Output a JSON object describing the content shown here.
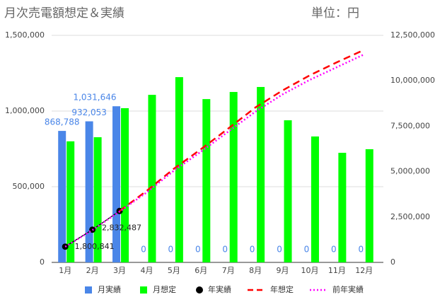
{
  "chart_data": {
    "type": "bar",
    "title": "月次売電額想定＆実績",
    "subtitle": "単位：円",
    "categories": [
      "1月",
      "2月",
      "3月",
      "4月",
      "5月",
      "6月",
      "7月",
      "8月",
      "9月",
      "10月",
      "11月",
      "12月"
    ],
    "ylim": [
      0,
      1500000
    ],
    "yticks": [
      0,
      {
        "value": 500000,
        "label": "500,000"
      },
      {
        "value": 1000000,
        "label": "1,000,000"
      },
      {
        "value": 1500000,
        "label": "1,500,000"
      }
    ],
    "y2lim": [
      0,
      12500000
    ],
    "y2ticks": [
      0,
      {
        "value": 2500000,
        "label": "2,500,000"
      },
      {
        "value": 5000000,
        "label": "5,000,000"
      },
      {
        "value": 7500000,
        "label": "7,500,000"
      },
      {
        "value": 10000000,
        "label": "10,000,000"
      },
      {
        "value": 12500000,
        "label": "12,500,000"
      }
    ],
    "grid": true,
    "legend": "bottom",
    "series": [
      {
        "name": "月実績",
        "type": "bar",
        "color": "#4a86e8",
        "values": [
          868788,
          932053,
          1031646,
          0,
          0,
          0,
          0,
          0,
          0,
          0,
          0,
          0
        ],
        "value_labels": [
          "868,788",
          "932,053",
          "1,031,646",
          "0",
          "0",
          "0",
          "0",
          "0",
          "0",
          "0",
          "0",
          "0"
        ]
      },
      {
        "name": "月想定",
        "type": "bar",
        "color": "#00ff00",
        "values": [
          800000,
          827000,
          1019000,
          1107000,
          1224000,
          1079000,
          1126000,
          1159000,
          939000,
          832000,
          724000,
          748000
        ]
      },
      {
        "name": "年実績",
        "type": "line",
        "axis": "y2",
        "color": "#000000",
        "marker": "circle",
        "values": [
          868788,
          1800841,
          2832487,
          null,
          null,
          null,
          null,
          null,
          null,
          null,
          null,
          null
        ],
        "value_labels": [
          null,
          "1,800,841",
          "2,832,487",
          null,
          null,
          null,
          null,
          null,
          null,
          null,
          null,
          null
        ]
      },
      {
        "name": "年想定",
        "type": "line",
        "axis": "y2",
        "color": "#ff0000",
        "dash": "dashed",
        "values": [
          null,
          null,
          2830000,
          3940000,
          5160000,
          6240000,
          7370000,
          8530000,
          9470000,
          10300000,
          11020000,
          11700000
        ]
      },
      {
        "name": "前年実績",
        "type": "line",
        "axis": "y2",
        "color": "#ff00ff",
        "dash": "dotted",
        "values": [
          860000,
          1780000,
          2800000,
          3850000,
          5050000,
          6100000,
          7200000,
          8300000,
          9250000,
          10050000,
          10750000,
          11450000
        ]
      }
    ]
  }
}
